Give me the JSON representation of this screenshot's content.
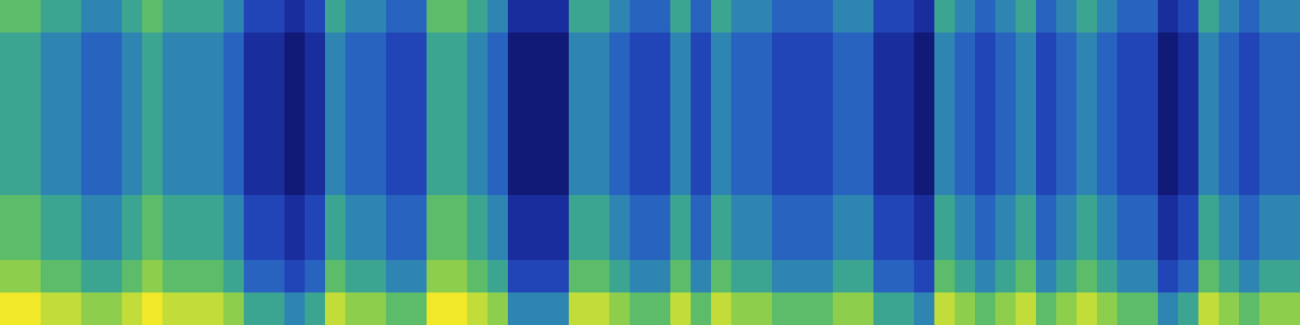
{
  "chart_data": {
    "type": "heatmap",
    "tick_labels": false,
    "zlim": [
      0,
      10
    ],
    "z": [
      [
        7,
        7,
        6,
        6,
        5,
        5,
        6,
        7,
        6,
        6,
        6,
        5,
        3,
        3,
        2,
        3,
        6,
        5,
        5,
        4,
        4,
        7,
        7,
        6,
        5,
        2,
        2,
        2,
        6,
        6,
        5,
        4,
        4,
        6,
        4,
        6,
        5,
        5,
        4,
        4,
        4,
        5,
        5,
        3,
        3,
        2,
        6,
        5,
        4,
        5,
        6,
        4,
        5,
        6,
        5,
        4,
        4,
        2,
        3,
        6,
        5,
        4,
        5,
        5
      ],
      [
        6,
        6,
        5,
        5,
        4,
        4,
        5,
        6,
        5,
        5,
        5,
        4,
        2,
        2,
        1,
        2,
        5,
        4,
        4,
        3,
        3,
        6,
        6,
        5,
        4,
        1,
        1,
        1,
        5,
        5,
        4,
        3,
        3,
        5,
        3,
        5,
        4,
        4,
        3,
        3,
        3,
        4,
        4,
        2,
        2,
        1,
        5,
        4,
        3,
        4,
        5,
        3,
        4,
        5,
        4,
        3,
        3,
        1,
        2,
        5,
        4,
        3,
        4,
        4
      ],
      [
        6,
        6,
        5,
        5,
        4,
        4,
        5,
        6,
        5,
        5,
        5,
        4,
        2,
        2,
        1,
        2,
        5,
        4,
        4,
        3,
        3,
        6,
        6,
        5,
        4,
        1,
        1,
        1,
        5,
        5,
        4,
        3,
        3,
        5,
        3,
        5,
        4,
        4,
        3,
        3,
        3,
        4,
        4,
        2,
        2,
        1,
        5,
        4,
        3,
        4,
        5,
        3,
        4,
        5,
        4,
        3,
        3,
        1,
        2,
        5,
        4,
        3,
        4,
        4
      ],
      [
        6,
        6,
        5,
        5,
        4,
        4,
        5,
        6,
        5,
        5,
        5,
        4,
        2,
        2,
        1,
        2,
        5,
        4,
        4,
        3,
        3,
        6,
        6,
        5,
        4,
        1,
        1,
        1,
        5,
        5,
        4,
        3,
        3,
        5,
        3,
        5,
        4,
        4,
        3,
        3,
        3,
        4,
        4,
        2,
        2,
        1,
        5,
        4,
        3,
        4,
        5,
        3,
        4,
        5,
        4,
        3,
        3,
        1,
        2,
        5,
        4,
        3,
        4,
        4
      ],
      [
        6,
        6,
        5,
        5,
        4,
        4,
        5,
        6,
        5,
        5,
        5,
        4,
        2,
        2,
        1,
        2,
        5,
        4,
        4,
        3,
        3,
        6,
        6,
        5,
        4,
        1,
        1,
        1,
        5,
        5,
        4,
        3,
        3,
        5,
        3,
        5,
        4,
        4,
        3,
        3,
        3,
        4,
        4,
        2,
        2,
        1,
        5,
        4,
        3,
        4,
        5,
        3,
        4,
        5,
        4,
        3,
        3,
        1,
        2,
        5,
        4,
        3,
        4,
        4
      ],
      [
        6,
        6,
        5,
        5,
        4,
        4,
        5,
        6,
        5,
        5,
        5,
        4,
        2,
        2,
        1,
        2,
        5,
        4,
        4,
        3,
        3,
        6,
        6,
        5,
        4,
        1,
        1,
        1,
        5,
        5,
        4,
        3,
        3,
        5,
        3,
        5,
        4,
        4,
        3,
        3,
        3,
        4,
        4,
        2,
        2,
        1,
        5,
        4,
        3,
        4,
        5,
        3,
        4,
        5,
        4,
        3,
        3,
        1,
        2,
        5,
        4,
        3,
        4,
        4
      ],
      [
        7,
        7,
        6,
        6,
        5,
        5,
        6,
        7,
        6,
        6,
        6,
        5,
        3,
        3,
        2,
        3,
        6,
        5,
        5,
        4,
        4,
        7,
        7,
        6,
        5,
        2,
        2,
        2,
        6,
        6,
        5,
        4,
        4,
        6,
        4,
        6,
        5,
        5,
        4,
        4,
        4,
        5,
        5,
        3,
        3,
        2,
        6,
        5,
        4,
        5,
        6,
        4,
        5,
        6,
        5,
        4,
        4,
        2,
        3,
        6,
        5,
        4,
        5,
        5
      ],
      [
        7,
        7,
        6,
        6,
        5,
        5,
        6,
        7,
        6,
        6,
        6,
        5,
        3,
        3,
        2,
        3,
        6,
        5,
        5,
        4,
        4,
        7,
        7,
        6,
        5,
        2,
        2,
        2,
        6,
        6,
        5,
        4,
        4,
        6,
        4,
        6,
        5,
        5,
        4,
        4,
        4,
        5,
        5,
        3,
        3,
        2,
        6,
        5,
        4,
        5,
        6,
        4,
        5,
        6,
        5,
        4,
        4,
        2,
        3,
        6,
        5,
        4,
        5,
        5
      ],
      [
        8,
        8,
        7,
        7,
        6,
        6,
        7,
        8,
        7,
        7,
        7,
        6,
        4,
        4,
        3,
        4,
        7,
        6,
        6,
        5,
        5,
        8,
        8,
        7,
        6,
        3,
        3,
        3,
        7,
        7,
        6,
        5,
        5,
        7,
        5,
        7,
        6,
        6,
        5,
        5,
        5,
        6,
        6,
        4,
        4,
        3,
        7,
        6,
        5,
        6,
        7,
        5,
        6,
        7,
        6,
        5,
        5,
        3,
        4,
        7,
        6,
        5,
        6,
        6
      ],
      [
        10,
        10,
        9,
        9,
        8,
        8,
        9,
        10,
        9,
        9,
        9,
        8,
        6,
        6,
        5,
        6,
        9,
        8,
        8,
        7,
        7,
        10,
        10,
        9,
        8,
        5,
        5,
        5,
        9,
        9,
        8,
        7,
        7,
        9,
        7,
        9,
        8,
        8,
        7,
        7,
        7,
        8,
        8,
        6,
        6,
        5,
        9,
        8,
        7,
        8,
        9,
        7,
        8,
        9,
        8,
        7,
        7,
        5,
        6,
        9,
        8,
        7,
        8,
        8
      ]
    ]
  }
}
